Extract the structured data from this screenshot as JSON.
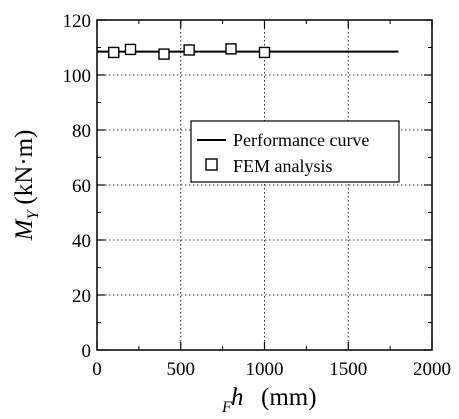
{
  "chart_data": {
    "type": "line",
    "title": "",
    "xlabel": {
      "sub": "F",
      "main": "h",
      "unit": "(mm)"
    },
    "ylabel": {
      "main": "M",
      "sub": "Y",
      "unit": "(kN·m)"
    },
    "xlim": [
      0,
      2000
    ],
    "ylim": [
      0,
      120
    ],
    "x_ticks": [
      0,
      500,
      1000,
      1500,
      2000
    ],
    "y_ticks": [
      0,
      20,
      40,
      60,
      80,
      100,
      120
    ],
    "grid": true,
    "legend": {
      "placement": "center-right"
    },
    "series": [
      {
        "name": "Performance curve",
        "style": "line",
        "color": "#000000",
        "x": [
          0,
          1800
        ],
        "y": [
          108.5,
          108.5
        ]
      },
      {
        "name": "FEM analysis",
        "style": "open-square",
        "color": "#000000",
        "x": [
          100,
          200,
          400,
          550,
          800,
          1000
        ],
        "y": [
          108.2,
          109.3,
          107.6,
          109.1,
          109.5,
          108.2
        ]
      }
    ]
  }
}
